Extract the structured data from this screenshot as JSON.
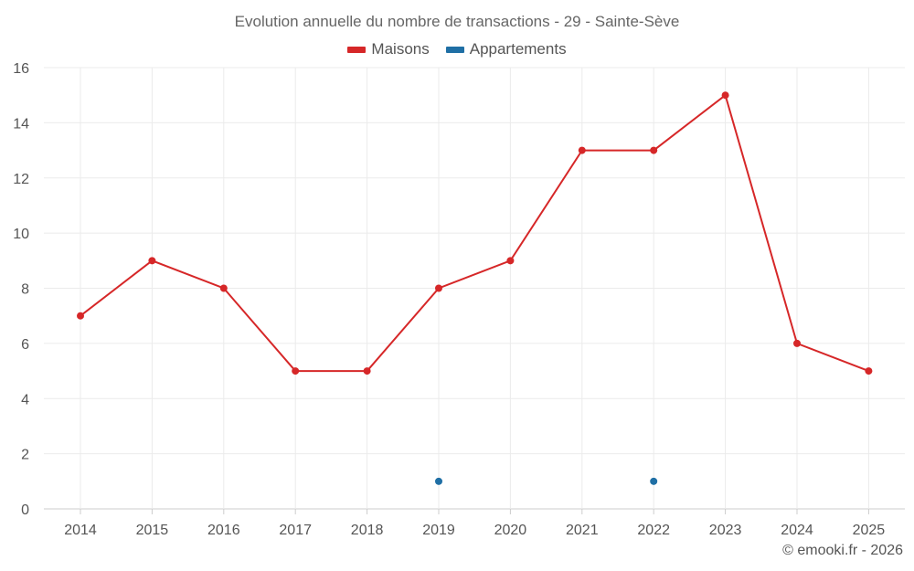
{
  "chart_data": {
    "type": "line",
    "title": "Evolution annuelle du nombre de transactions - 29 - Sainte-Sève",
    "categories": [
      "2014",
      "2015",
      "2016",
      "2017",
      "2018",
      "2019",
      "2020",
      "2021",
      "2022",
      "2023",
      "2024",
      "2025"
    ],
    "series": [
      {
        "name": "Maisons",
        "color": "#d62728",
        "values": [
          7,
          9,
          8,
          5,
          5,
          8,
          9,
          13,
          13,
          15,
          6,
          5
        ]
      },
      {
        "name": "Appartements",
        "color": "#1f6fa5",
        "values": [
          null,
          null,
          null,
          null,
          null,
          1,
          null,
          null,
          1,
          null,
          null,
          null
        ]
      }
    ],
    "ylim": [
      0,
      16
    ],
    "yticks": [
      0,
      2,
      4,
      6,
      8,
      10,
      12,
      14,
      16
    ],
    "xlabel": "",
    "ylabel": "",
    "grid": true,
    "legend_position": "top-center"
  },
  "credit": "© emooki.fr - 2026"
}
